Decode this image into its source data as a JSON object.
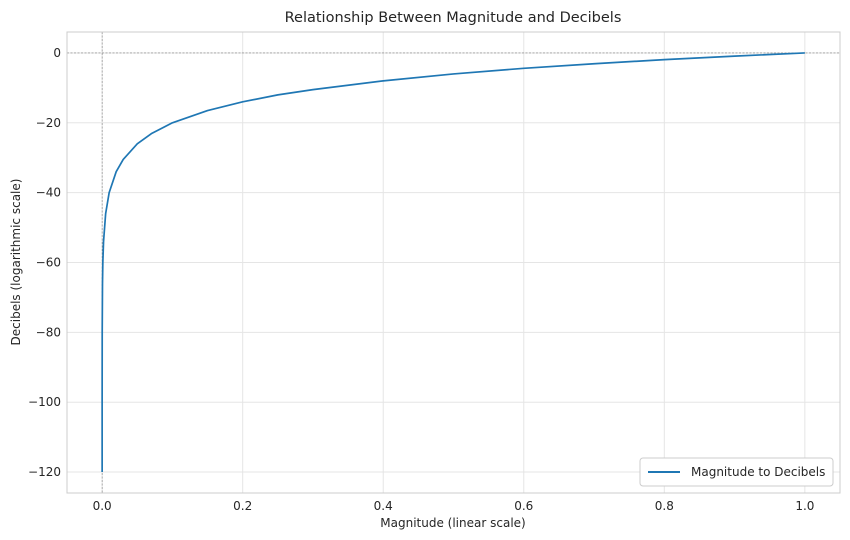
{
  "chart_data": {
    "type": "line",
    "title": "Relationship Between Magnitude and Decibels",
    "xlabel": "Magnitude (linear scale)",
    "ylabel": "Decibels (logarithmic scale)",
    "xlim": [
      -0.05,
      1.05
    ],
    "ylim": [
      -126,
      6
    ],
    "x_ticks": [
      0.0,
      0.2,
      0.4,
      0.6,
      0.8,
      1.0
    ],
    "x_tick_labels": [
      "0.0",
      "0.2",
      "0.4",
      "0.6",
      "0.8",
      "1.0"
    ],
    "y_ticks": [
      0,
      -20,
      -40,
      -60,
      -80,
      -100,
      -120
    ],
    "y_tick_labels": [
      "0",
      "−20",
      "−40",
      "−60",
      "−80",
      "−100",
      "−120"
    ],
    "grid": true,
    "reference_lines": {
      "x": 0,
      "y": 0,
      "style": "dashed",
      "color": "#808080"
    },
    "legend": {
      "position": "lower-right"
    },
    "series": [
      {
        "name": "Magnitude to Decibels",
        "color": "#1f77b4",
        "points": [
          [
            1e-06,
            -120
          ],
          [
            1e-05,
            -100
          ],
          [
            0.0001,
            -80
          ],
          [
            0.0005,
            -66
          ],
          [
            0.001,
            -60
          ],
          [
            0.002,
            -54
          ],
          [
            0.005,
            -46
          ],
          [
            0.01,
            -40
          ],
          [
            0.02,
            -34
          ],
          [
            0.03,
            -30.5
          ],
          [
            0.05,
            -26
          ],
          [
            0.07,
            -23.1
          ],
          [
            0.1,
            -20
          ],
          [
            0.15,
            -16.5
          ],
          [
            0.2,
            -14
          ],
          [
            0.25,
            -12
          ],
          [
            0.3,
            -10.5
          ],
          [
            0.4,
            -8
          ],
          [
            0.5,
            -6
          ],
          [
            0.6,
            -4.4
          ],
          [
            0.7,
            -3.1
          ],
          [
            0.8,
            -1.9
          ],
          [
            0.9,
            -0.9
          ],
          [
            1.0,
            0
          ]
        ]
      }
    ]
  }
}
